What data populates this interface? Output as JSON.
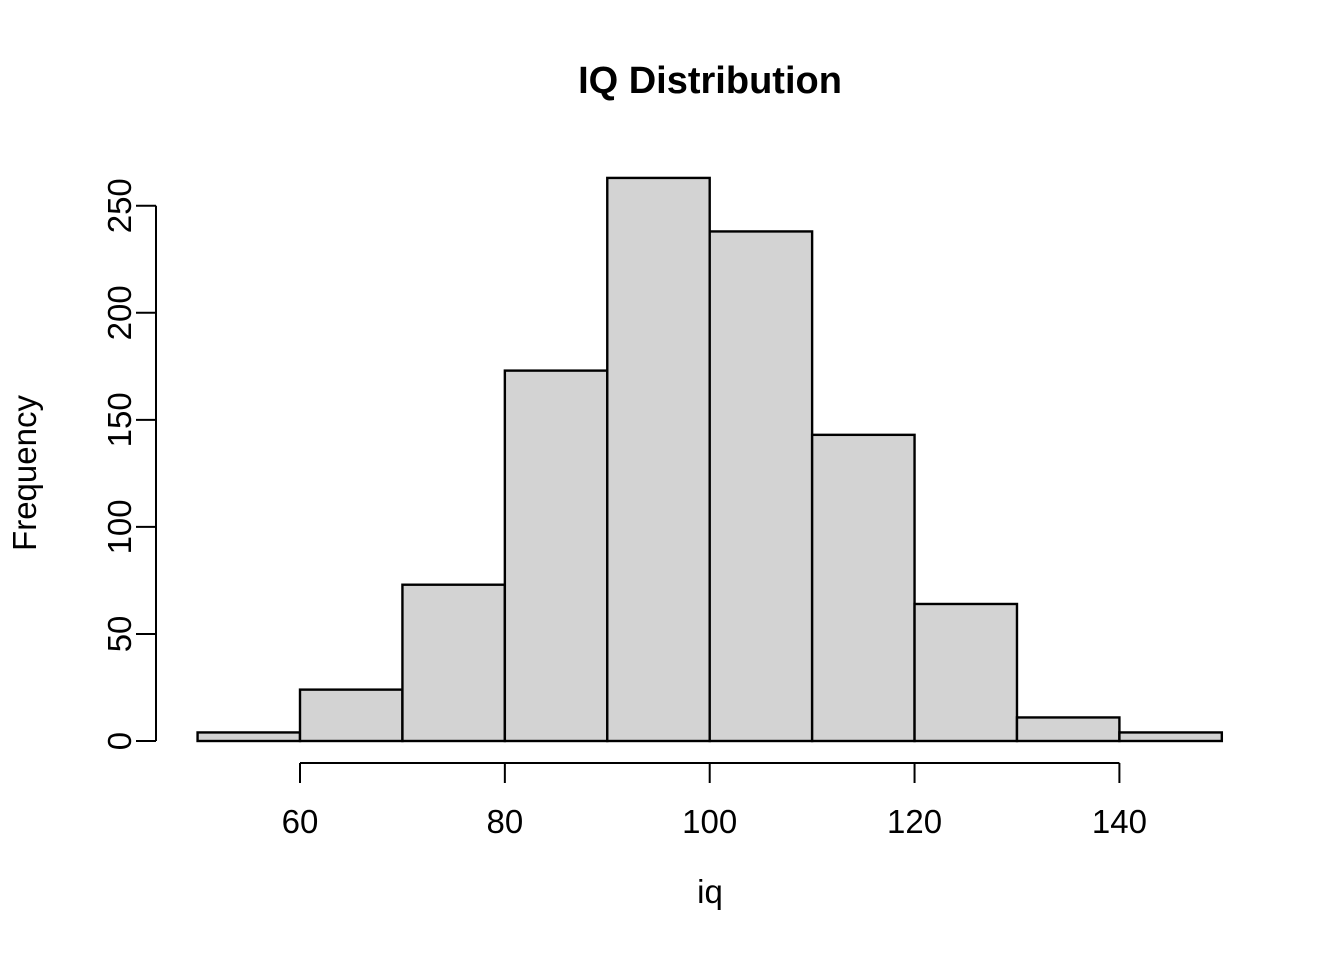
{
  "figure": {
    "title": "IQ Distribution",
    "xlabel": "iq",
    "ylabel": "Frequency"
  },
  "chart_data": {
    "type": "bar",
    "subtype": "histogram",
    "title": "IQ Distribution",
    "xlabel": "iq",
    "ylabel": "Frequency",
    "bin_edges": [
      50,
      60,
      70,
      80,
      90,
      100,
      110,
      120,
      130,
      140,
      150
    ],
    "counts": [
      4,
      24,
      73,
      173,
      263,
      238,
      143,
      64,
      11,
      4
    ],
    "x_ticks": [
      60,
      80,
      100,
      120,
      140
    ],
    "y_ticks": [
      0,
      50,
      100,
      150,
      200,
      250
    ],
    "xlim": [
      50,
      150
    ],
    "ylim": [
      0,
      263
    ],
    "grid": false,
    "legend": false,
    "bar_fill": "#D3D3D3",
    "bar_border": "#000000",
    "axis_color": "#000000",
    "text_color": "#000000",
    "background": "#FFFFFF"
  }
}
